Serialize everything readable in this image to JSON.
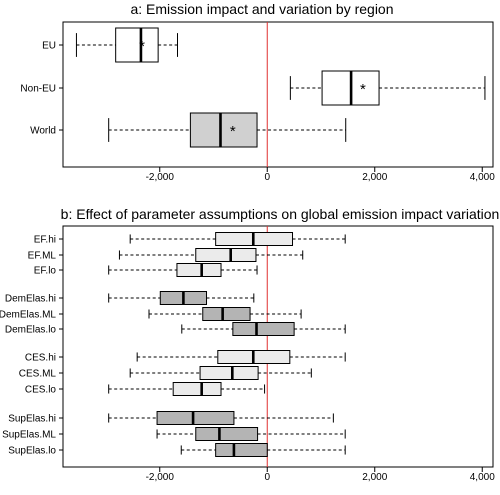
{
  "chart_data": [
    {
      "type": "boxplot",
      "title": "a: Emission impact and variation by region",
      "xlabel": "",
      "ylabel": "",
      "xlim": [
        -3800,
        4200
      ],
      "x_ticks": [
        -2000,
        0,
        2000,
        4000
      ],
      "x_tick_labels": [
        "-2,000",
        "0",
        "2,000",
        "4,000"
      ],
      "reference_line": {
        "x": 0,
        "color": "#e03030"
      },
      "categories": [
        "EU",
        "Non-EU",
        "World"
      ],
      "series": [
        {
          "category": "EU",
          "whisker_low": -3550,
          "q1": -2820,
          "median": -2350,
          "q3": -2030,
          "whisker_high": -1670,
          "mean": -2330,
          "fill": "#ffffff"
        },
        {
          "category": "Non-EU",
          "whisker_low": 430,
          "q1": 1020,
          "median": 1560,
          "q3": 2080,
          "whisker_high": 4050,
          "mean": 1780,
          "fill": "#ffffff"
        },
        {
          "category": "World",
          "whisker_low": -2950,
          "q1": -1430,
          "median": -870,
          "q3": -190,
          "whisker_high": 1460,
          "mean": -640,
          "fill": "#d0d0d0"
        }
      ]
    },
    {
      "type": "boxplot",
      "title": "b: Effect of parameter assumptions on global emission impact variation",
      "xlabel": "",
      "ylabel": "",
      "xlim": [
        -3800,
        4200
      ],
      "x_ticks": [
        -2000,
        0,
        2000,
        4000
      ],
      "x_tick_labels": [
        "-2,000",
        "0",
        "2,000",
        "4,000"
      ],
      "reference_line": {
        "x": 0,
        "color": "#e03030"
      },
      "categories": [
        "EF.hi",
        "EF.ML",
        "EF.lo",
        "DemElas.hi",
        "DemElas.ML",
        "DemElas.lo",
        "CES.hi",
        "CES.ML",
        "CES.lo",
        "SupElas.hi",
        "SupElas.ML",
        "SupElas.lo"
      ],
      "series": [
        {
          "category": "EF.hi",
          "whisker_low": -2550,
          "q1": -960,
          "median": -260,
          "q3": 470,
          "whisker_high": 1450,
          "fill": "#ebebeb"
        },
        {
          "category": "EF.ML",
          "whisker_low": -2750,
          "q1": -1330,
          "median": -680,
          "q3": -210,
          "whisker_high": 660,
          "fill": "#ebebeb"
        },
        {
          "category": "EF.lo",
          "whisker_low": -2950,
          "q1": -1680,
          "median": -1220,
          "q3": -860,
          "whisker_high": -190,
          "fill": "#ebebeb"
        },
        {
          "category": "DemElas.hi",
          "whisker_low": -2950,
          "q1": -1990,
          "median": -1560,
          "q3": -1130,
          "whisker_high": -250,
          "fill": "#b4b4b4"
        },
        {
          "category": "DemElas.ML",
          "whisker_low": -2200,
          "q1": -1200,
          "median": -830,
          "q3": -320,
          "whisker_high": 630,
          "fill": "#b4b4b4"
        },
        {
          "category": "DemElas.lo",
          "whisker_low": -1590,
          "q1": -640,
          "median": -200,
          "q3": 500,
          "whisker_high": 1450,
          "fill": "#b4b4b4"
        },
        {
          "category": "CES.hi",
          "whisker_low": -2420,
          "q1": -920,
          "median": -260,
          "q3": 420,
          "whisker_high": 1450,
          "fill": "#ebebeb"
        },
        {
          "category": "CES.ML",
          "whisker_low": -2550,
          "q1": -1250,
          "median": -650,
          "q3": -170,
          "whisker_high": 820,
          "fill": "#ebebeb"
        },
        {
          "category": "CES.lo",
          "whisker_low": -2950,
          "q1": -1750,
          "median": -1220,
          "q3": -860,
          "whisker_high": -50,
          "fill": "#ebebeb"
        },
        {
          "category": "SupElas.hi",
          "whisker_low": -2950,
          "q1": -2050,
          "median": -1380,
          "q3": -620,
          "whisker_high": 1230,
          "fill": "#b4b4b4"
        },
        {
          "category": "SupElas.ML",
          "whisker_low": -2050,
          "q1": -1330,
          "median": -890,
          "q3": -180,
          "whisker_high": 1450,
          "fill": "#b4b4b4"
        },
        {
          "category": "SupElas.lo",
          "whisker_low": -1600,
          "q1": -960,
          "median": -620,
          "q3": 0,
          "whisker_high": 1450,
          "fill": "#b4b4b4"
        }
      ]
    }
  ]
}
